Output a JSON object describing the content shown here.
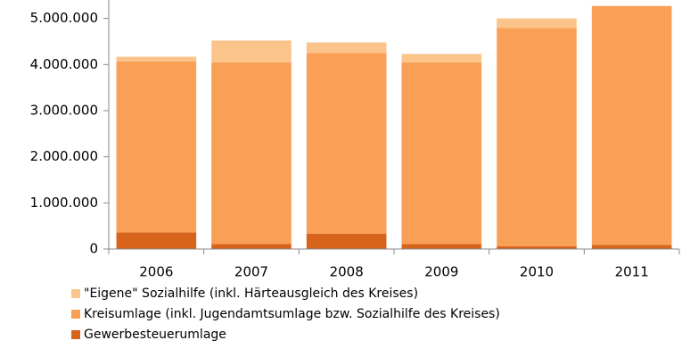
{
  "chart_data": {
    "type": "stacked_bar",
    "categories": [
      "2006",
      "2007",
      "2008",
      "2009",
      "2010",
      "2011"
    ],
    "series": [
      {
        "name": "Gewerbesteuerumlage",
        "color": "#d8641c",
        "values": [
          360000,
          110000,
          330000,
          110000,
          60000,
          90000
        ]
      },
      {
        "name": "Kreisumlage (inkl. Jugendamtsumlage bzw. Sozialhilfe des Kreises)",
        "color": "#f9a056",
        "values": [
          3710000,
          3940000,
          3920000,
          3940000,
          4730000,
          5180000
        ]
      },
      {
        "name": "\"Eigene\" Sozialhilfe (inkl. Härteausgleich des Kreises)",
        "color": "#fbc48a",
        "values": [
          100000,
          470000,
          230000,
          180000,
          210000,
          0
        ]
      }
    ],
    "ylim": [
      0,
      5400000
    ],
    "yticks": [
      {
        "value": 0,
        "label": "0"
      },
      {
        "value": 1000000,
        "label": "1.000.000"
      },
      {
        "value": 2000000,
        "label": "2.000.000"
      },
      {
        "value": 3000000,
        "label": "3.000.000"
      },
      {
        "value": 4000000,
        "label": "4.000.000"
      },
      {
        "value": 5000000,
        "label": "5.000.000"
      }
    ]
  }
}
